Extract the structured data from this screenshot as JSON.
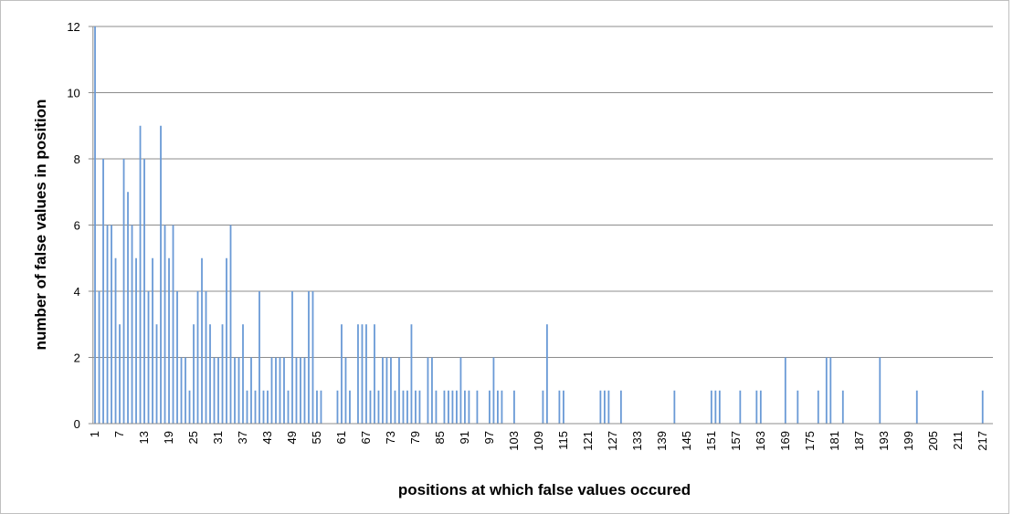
{
  "chart_data": {
    "type": "bar",
    "x_label": "positions at which false values occured",
    "y_label": "number of false values in position",
    "color": "#6a9ad6",
    "grid": true,
    "ylim": [
      0,
      12
    ],
    "yticks": [
      0,
      2,
      4,
      6,
      8,
      10,
      12
    ],
    "categories": [
      "1",
      null,
      null,
      null,
      null,
      null,
      "7",
      null,
      null,
      null,
      null,
      null,
      "13",
      null,
      null,
      null,
      null,
      null,
      "19",
      null,
      null,
      null,
      null,
      null,
      "25",
      null,
      null,
      null,
      null,
      null,
      "31",
      null,
      null,
      null,
      null,
      null,
      "37",
      null,
      null,
      null,
      null,
      null,
      "43",
      null,
      null,
      null,
      null,
      null,
      "49",
      null,
      null,
      null,
      null,
      null,
      "55",
      null,
      null,
      null,
      null,
      null,
      "61",
      null,
      null,
      null,
      null,
      null,
      "67",
      null,
      null,
      null,
      null,
      null,
      "73",
      null,
      null,
      null,
      null,
      null,
      "79",
      null,
      null,
      null,
      null,
      null,
      "85",
      null,
      null,
      null,
      null,
      null,
      "91",
      null,
      null,
      null,
      null,
      null,
      "97",
      null,
      null,
      null,
      null,
      null,
      "103",
      null,
      null,
      null,
      null,
      null,
      "109",
      null,
      null,
      null,
      null,
      null,
      "115",
      null,
      null,
      null,
      null,
      null,
      "121",
      null,
      null,
      null,
      null,
      null,
      "127",
      null,
      null,
      null,
      null,
      null,
      "133",
      null,
      null,
      null,
      null,
      null,
      "139",
      null,
      null,
      null,
      null,
      null,
      "145",
      null,
      null,
      null,
      null,
      null,
      "151",
      null,
      null,
      null,
      null,
      null,
      "157",
      null,
      null,
      null,
      null,
      null,
      "163",
      null,
      null,
      null,
      null,
      null,
      "169",
      null,
      null,
      null,
      null,
      null,
      "175",
      null,
      null,
      null,
      null,
      null,
      "181",
      null,
      null,
      null,
      null,
      null,
      "187",
      null,
      null,
      null,
      null,
      null,
      "193",
      null,
      null,
      null,
      null,
      null,
      "199",
      null,
      null,
      null,
      null,
      null,
      "205",
      null,
      null,
      null,
      null,
      null,
      "211",
      null,
      null,
      null,
      null,
      null,
      "217",
      null,
      null
    ],
    "values": [
      12,
      4,
      8,
      6,
      6,
      5,
      3,
      8,
      7,
      6,
      5,
      9,
      8,
      4,
      5,
      3,
      9,
      6,
      5,
      6,
      4,
      2,
      2,
      1,
      3,
      4,
      5,
      4,
      3,
      2,
      2,
      3,
      5,
      6,
      2,
      2,
      3,
      1,
      2,
      1,
      4,
      1,
      1,
      2,
      2,
      2,
      2,
      1,
      4,
      2,
      2,
      2,
      4,
      4,
      1,
      1,
      0,
      0,
      0,
      1,
      3,
      2,
      1,
      0,
      3,
      3,
      3,
      1,
      3,
      1,
      2,
      2,
      2,
      1,
      2,
      1,
      1,
      3,
      1,
      1,
      0,
      2,
      2,
      1,
      0,
      1,
      1,
      1,
      1,
      2,
      1,
      1,
      0,
      1,
      0,
      0,
      1,
      2,
      1,
      1,
      0,
      0,
      1,
      0,
      0,
      0,
      0,
      0,
      0,
      1,
      3,
      0,
      0,
      1,
      1,
      0,
      0,
      0,
      0,
      0,
      0,
      0,
      0,
      1,
      1,
      1,
      0,
      0,
      1,
      0,
      0,
      0,
      0,
      0,
      0,
      0,
      0,
      0,
      0,
      0,
      0,
      1,
      0,
      0,
      0,
      0,
      0,
      0,
      0,
      0,
      1,
      1,
      1,
      0,
      0,
      0,
      0,
      1,
      0,
      0,
      0,
      1,
      1,
      0,
      0,
      0,
      0,
      0,
      2,
      0,
      0,
      1,
      0,
      0,
      0,
      0,
      1,
      0,
      2,
      2,
      0,
      0,
      1,
      0,
      0,
      0,
      0,
      0,
      0,
      0,
      0,
      2,
      0,
      0,
      0,
      0,
      0,
      0,
      0,
      0,
      1,
      0,
      0,
      0,
      0,
      0,
      0,
      0,
      0,
      0,
      0,
      0,
      0,
      0,
      0,
      0,
      1,
      0,
      0
    ]
  }
}
